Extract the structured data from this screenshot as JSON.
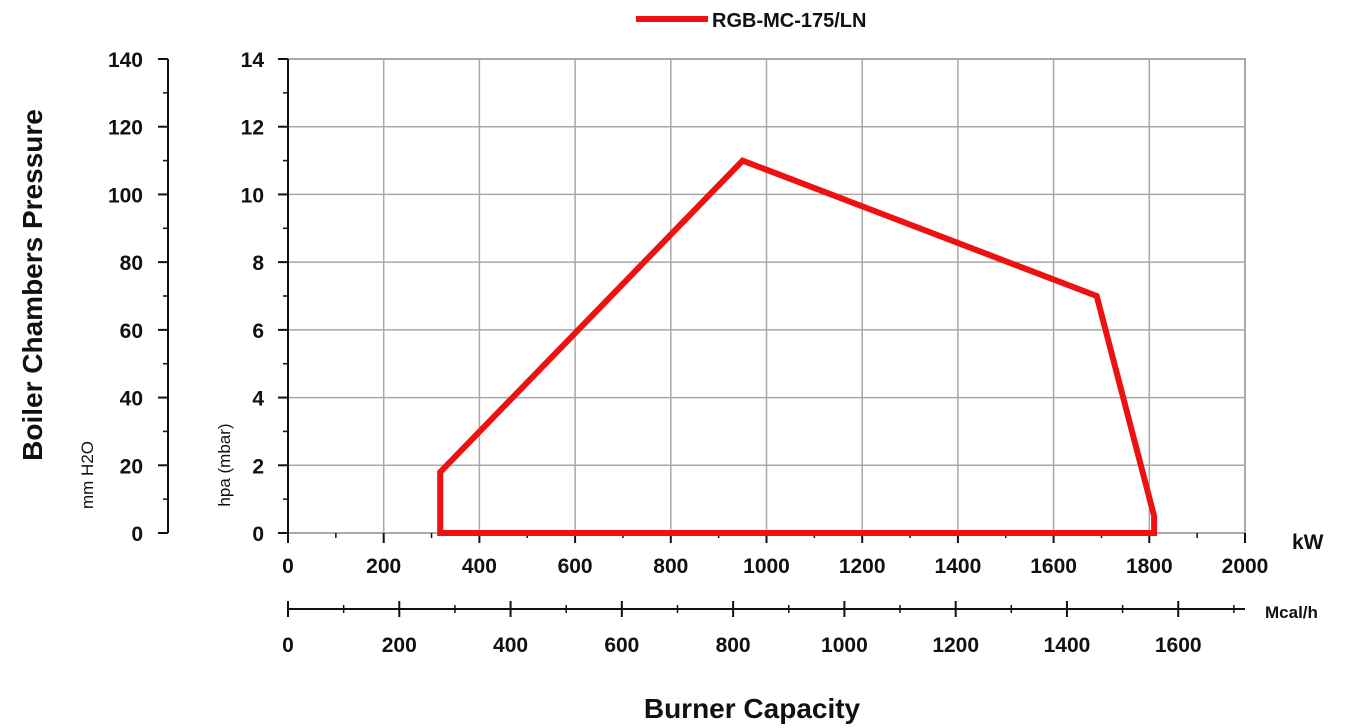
{
  "chart_data": {
    "type": "line",
    "legend": {
      "position": "top-center",
      "entries": [
        "RGB-MC-175/LN"
      ]
    },
    "series": [
      {
        "name": "RGB-MC-175/LN",
        "color": "#ee1111",
        "closed": true,
        "points": [
          {
            "x": 318,
            "y": 0
          },
          {
            "x": 318,
            "y": 1.8
          },
          {
            "x": 950,
            "y": 11
          },
          {
            "x": 1690,
            "y": 7
          },
          {
            "x": 1810,
            "y": 0.5
          },
          {
            "x": 1810,
            "y": 0
          }
        ]
      }
    ],
    "x_axis": {
      "unit": "kW",
      "range": [
        0,
        2000
      ],
      "ticks": [
        "0",
        "200",
        "400",
        "600",
        "800",
        "1000",
        "1200",
        "1400",
        "1600",
        "1800",
        "2000"
      ]
    },
    "x2_axis": {
      "unit": "Mcal/h",
      "range": [
        0,
        1720
      ],
      "ticks": [
        "0",
        "200",
        "400",
        "600",
        "800",
        "1000",
        "1200",
        "1400",
        "1600"
      ]
    },
    "y_axis": {
      "unit": "hpa (mbar)",
      "range": [
        0,
        14
      ],
      "ticks": [
        "0",
        "2",
        "4",
        "6",
        "8",
        "10",
        "12",
        "14"
      ]
    },
    "y2_axis": {
      "unit": "mm H2O",
      "range": [
        0,
        140
      ],
      "ticks": [
        "0",
        "20",
        "40",
        "60",
        "80",
        "100",
        "120",
        "140"
      ]
    },
    "xlabel": "Burner Capacity",
    "ylabel": "Boiler Chambers Pressure",
    "grid": true
  }
}
